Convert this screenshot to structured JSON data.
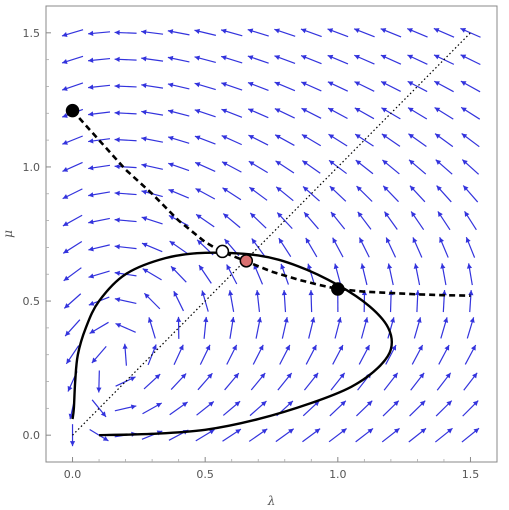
{
  "chart_data": {
    "type": "vector_field_phase_plot",
    "xlabel": "λ",
    "ylabel": "μ",
    "xlim": [
      -0.1,
      1.6
    ],
    "ylim": [
      -0.1,
      1.6
    ],
    "x_ticks": [
      {
        "value": 0.0,
        "label": "0.0"
      },
      {
        "value": 0.5,
        "label": "0.5"
      },
      {
        "value": 1.0,
        "label": "1.0"
      },
      {
        "value": 1.5,
        "label": "1.5"
      }
    ],
    "y_ticks": [
      {
        "value": 0.0,
        "label": "0.0"
      },
      {
        "value": 0.5,
        "label": "0.5"
      },
      {
        "value": 1.0,
        "label": "1.0"
      },
      {
        "value": 1.5,
        "label": "1.5"
      }
    ],
    "grid": false,
    "vector_field": {
      "color": "#3333dd",
      "x_start": 0.0,
      "x_end": 1.5,
      "x_count": 16,
      "y_start": 0.0,
      "y_end": 1.5,
      "y_count": 16
    },
    "diagonal": {
      "style": "dotted",
      "points": [
        [
          0.0,
          0.0
        ],
        [
          1.5,
          1.5
        ]
      ]
    },
    "dashed_curve": {
      "style": "dashed",
      "points": [
        [
          0.0,
          1.21
        ],
        [
          0.1,
          1.1
        ],
        [
          0.2,
          0.99
        ],
        [
          0.3,
          0.9
        ],
        [
          0.4,
          0.8
        ],
        [
          0.5,
          0.72
        ],
        [
          0.56,
          0.685
        ],
        [
          0.65,
          0.65
        ],
        [
          0.75,
          0.61
        ],
        [
          0.85,
          0.58
        ],
        [
          0.93,
          0.56
        ],
        [
          1.0,
          0.545
        ],
        [
          1.1,
          0.535
        ],
        [
          1.2,
          0.53
        ],
        [
          1.3,
          0.525
        ],
        [
          1.4,
          0.522
        ],
        [
          1.5,
          0.52
        ]
      ]
    },
    "solid_curve": {
      "style": "solid",
      "points": [
        [
          0.1,
          0.0
        ],
        [
          0.3,
          0.005
        ],
        [
          0.5,
          0.02
        ],
        [
          0.7,
          0.06
        ],
        [
          0.9,
          0.12
        ],
        [
          1.05,
          0.18
        ],
        [
          1.15,
          0.25
        ],
        [
          1.2,
          0.32
        ],
        [
          1.19,
          0.4
        ],
        [
          1.12,
          0.48
        ],
        [
          1.0,
          0.56
        ],
        [
          0.85,
          0.63
        ],
        [
          0.7,
          0.67
        ],
        [
          0.5,
          0.68
        ],
        [
          0.35,
          0.66
        ],
        [
          0.2,
          0.6
        ],
        [
          0.1,
          0.5
        ],
        [
          0.05,
          0.4
        ],
        [
          0.02,
          0.3
        ],
        [
          0.01,
          0.2
        ],
        [
          0.005,
          0.1
        ],
        [
          0.0,
          0.06
        ]
      ]
    },
    "points": [
      {
        "x": 0.0,
        "y": 1.21,
        "fill": "#000000"
      },
      {
        "x": 0.565,
        "y": 0.685,
        "fill": "#ffffff"
      },
      {
        "x": 0.655,
        "y": 0.65,
        "fill": "#d97070"
      },
      {
        "x": 1.0,
        "y": 0.545,
        "fill": "#000000"
      }
    ]
  }
}
